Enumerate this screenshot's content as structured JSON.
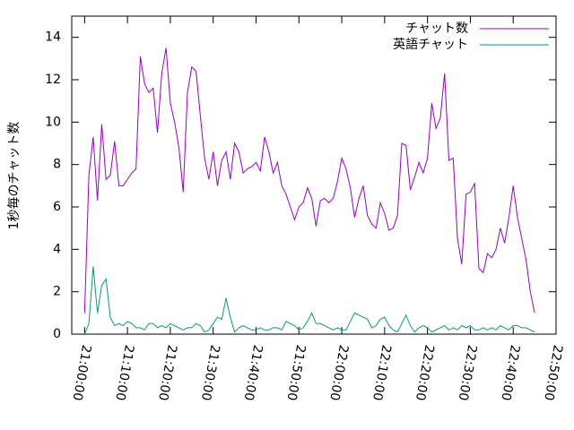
{
  "chart_data": {
    "type": "line",
    "ylabel": "1秒毎のチャット数",
    "x": [
      "21:00:00",
      "21:01:00",
      "21:02:00",
      "21:03:00",
      "21:04:00",
      "21:05:00",
      "21:06:00",
      "21:07:00",
      "21:08:00",
      "21:09:00",
      "21:10:00",
      "21:11:00",
      "21:12:00",
      "21:13:00",
      "21:14:00",
      "21:15:00",
      "21:16:00",
      "21:17:00",
      "21:18:00",
      "21:19:00",
      "21:20:00",
      "21:21:00",
      "21:22:00",
      "21:23:00",
      "21:24:00",
      "21:25:00",
      "21:26:00",
      "21:27:00",
      "21:28:00",
      "21:29:00",
      "21:30:00",
      "21:31:00",
      "21:32:00",
      "21:33:00",
      "21:34:00",
      "21:35:00",
      "21:36:00",
      "21:37:00",
      "21:38:00",
      "21:39:00",
      "21:40:00",
      "21:41:00",
      "21:42:00",
      "21:43:00",
      "21:44:00",
      "21:45:00",
      "21:46:00",
      "21:47:00",
      "21:48:00",
      "21:49:00",
      "21:50:00",
      "21:51:00",
      "21:52:00",
      "21:53:00",
      "21:54:00",
      "21:55:00",
      "21:56:00",
      "21:57:00",
      "21:58:00",
      "21:59:00",
      "22:00:00",
      "22:01:00",
      "22:02:00",
      "22:03:00",
      "22:04:00",
      "22:05:00",
      "22:06:00",
      "22:07:00",
      "22:08:00",
      "22:09:00",
      "22:10:00",
      "22:11:00",
      "22:12:00",
      "22:13:00",
      "22:14:00",
      "22:15:00",
      "22:16:00",
      "22:17:00",
      "22:18:00",
      "22:19:00",
      "22:20:00",
      "22:21:00",
      "22:22:00",
      "22:23:00",
      "22:24:00",
      "22:25:00",
      "22:26:00",
      "22:27:00",
      "22:28:00",
      "22:29:00",
      "22:30:00",
      "22:31:00",
      "22:32:00",
      "22:33:00",
      "22:34:00",
      "22:35:00",
      "22:36:00",
      "22:37:00",
      "22:38:00",
      "22:39:00",
      "22:40:00",
      "22:41:00",
      "22:42:00",
      "22:43:00",
      "22:44:00",
      "22:45:00"
    ],
    "series": [
      {
        "name": "チャット数",
        "color": "#9400d3",
        "values": [
          1,
          7.5,
          9.3,
          6.3,
          9.9,
          7.3,
          7.5,
          9.1,
          7.0,
          7.0,
          7.3,
          7.6,
          7.8,
          13.1,
          11.8,
          11.4,
          11.6,
          9.5,
          12.3,
          13.5,
          10.9,
          10.0,
          8.8,
          6.7,
          11.4,
          12.6,
          12.4,
          10.3,
          8.3,
          7.3,
          8.6,
          7.0,
          8.2,
          8.6,
          7.3,
          9.0,
          8.6,
          7.6,
          7.8,
          7.9,
          8.1,
          7.7,
          9.3,
          8.6,
          7.6,
          8.1,
          7.0,
          6.6,
          6.0,
          5.4,
          6.0,
          6.2,
          6.9,
          6.4,
          5.1,
          6.3,
          6.4,
          6.2,
          6.4,
          7.2,
          8.3,
          7.8,
          6.9,
          5.5,
          6.4,
          7.0,
          5.6,
          5.2,
          5.0,
          6.2,
          5.7,
          4.9,
          5.0,
          5.6,
          9.0,
          8.9,
          6.8,
          7.4,
          8.1,
          7.6,
          8.3,
          10.9,
          9.7,
          10.2,
          12.3,
          8.2,
          8.3,
          4.5,
          3.3,
          6.6,
          6.7,
          7.1,
          3.1,
          2.9,
          3.8,
          3.6,
          4.0,
          5.0,
          4.3,
          5.5,
          7.0,
          5.5,
          4.5,
          3.5,
          2.0,
          1.0
        ]
      },
      {
        "name": "英語チャット",
        "color": "#009e73",
        "values": [
          0,
          0.5,
          3.2,
          1.0,
          2.3,
          2.6,
          0.8,
          0.4,
          0.5,
          0.4,
          0.6,
          0.5,
          0.3,
          0.3,
          0.2,
          0.5,
          0.5,
          0.3,
          0.4,
          0.3,
          0.5,
          0.4,
          0.3,
          0.2,
          0.3,
          0.3,
          0.5,
          0.4,
          0.1,
          0.2,
          0.5,
          0.8,
          0.7,
          1.7,
          0.8,
          0.1,
          0.3,
          0.4,
          0.3,
          0.2,
          0.2,
          0.3,
          0.2,
          0.2,
          0.3,
          0.3,
          0.2,
          0.6,
          0.5,
          0.4,
          0.2,
          0.3,
          0.6,
          1.0,
          0.5,
          0.5,
          0.4,
          0.3,
          0.2,
          0.3,
          0.2,
          0.2,
          0.6,
          1.0,
          0.9,
          0.8,
          0.7,
          0.3,
          0.4,
          0.7,
          0.8,
          0.4,
          0.2,
          0.1,
          0.5,
          0.9,
          0.4,
          0.1,
          0.3,
          0.4,
          0.3,
          0.1,
          0.2,
          0.3,
          0.4,
          0.2,
          0.3,
          0.2,
          0.4,
          0.3,
          0.4,
          0.2,
          0.2,
          0.3,
          0.2,
          0.3,
          0.2,
          0.4,
          0.3,
          0.2,
          0.4,
          0.4,
          0.3,
          0.3,
          0.2,
          0.1
        ]
      }
    ],
    "xlim": [
      "20:57:00",
      "22:50:00"
    ],
    "xticks": [
      "21:00:00",
      "21:10:00",
      "21:20:00",
      "21:30:00",
      "21:40:00",
      "21:50:00",
      "22:00:00",
      "22:10:00",
      "22:20:00",
      "22:30:00",
      "22:40:00",
      "22:50:00"
    ],
    "ylim": [
      0,
      15
    ],
    "yticks": [
      0,
      2,
      4,
      6,
      8,
      10,
      12,
      14
    ],
    "legend": "top-right"
  }
}
